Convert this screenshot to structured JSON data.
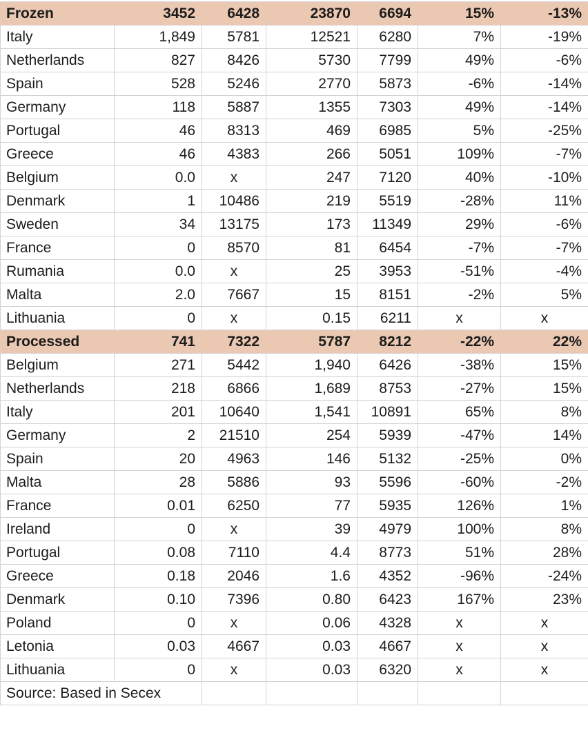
{
  "table": {
    "source_note": "Source: Based in Secex",
    "colors": {
      "section_header_bg": "#ebc8b2",
      "gridline": "#d2d2d2",
      "text": "#1c1c1c"
    },
    "sections": [
      {
        "header": {
          "label": "Frozen",
          "values": [
            "3452",
            "6428",
            "23870",
            "6694",
            "15%",
            "-13%"
          ]
        },
        "rows": [
          {
            "label": "Italy",
            "values": [
              "1,849",
              "5781",
              "12521",
              "6280",
              "7%",
              "-19%"
            ]
          },
          {
            "label": "Netherlands",
            "values": [
              "827",
              "8426",
              "5730",
              "7799",
              "49%",
              "-6%"
            ]
          },
          {
            "label": "Spain",
            "values": [
              "528",
              "5246",
              "2770",
              "5873",
              "-6%",
              "-14%"
            ]
          },
          {
            "label": "Germany",
            "values": [
              "118",
              "5887",
              "1355",
              "7303",
              "49%",
              "-14%"
            ]
          },
          {
            "label": "Portugal",
            "values": [
              "46",
              "8313",
              "469",
              "6985",
              "5%",
              "-25%"
            ]
          },
          {
            "label": "Greece",
            "values": [
              "46",
              "4383",
              "266",
              "5051",
              "109%",
              "-7%"
            ]
          },
          {
            "label": "Belgium",
            "values": [
              "0.0",
              "x",
              "247",
              "7120",
              "40%",
              "-10%"
            ]
          },
          {
            "label": "Denmark",
            "values": [
              "1",
              "10486",
              "219",
              "5519",
              "-28%",
              "11%"
            ]
          },
          {
            "label": "Sweden",
            "values": [
              "34",
              "13175",
              "173",
              "11349",
              "29%",
              "-6%"
            ]
          },
          {
            "label": "France",
            "values": [
              "0",
              "8570",
              "81",
              "6454",
              "-7%",
              "-7%"
            ]
          },
          {
            "label": "Rumania",
            "values": [
              "0.0",
              "x",
              "25",
              "3953",
              "-51%",
              "-4%"
            ]
          },
          {
            "label": "Malta",
            "values": [
              "2.0",
              "7667",
              "15",
              "8151",
              "-2%",
              "5%"
            ]
          },
          {
            "label": "Lithuania",
            "values": [
              "0",
              "x",
              "0.15",
              "6211",
              "x",
              "x"
            ]
          }
        ]
      },
      {
        "header": {
          "label": "Processed",
          "values": [
            "741",
            "7322",
            "5787",
            "8212",
            "-22%",
            "22%"
          ]
        },
        "rows": [
          {
            "label": "Belgium",
            "values": [
              "271",
              "5442",
              "1,940",
              "6426",
              "-38%",
              "15%"
            ]
          },
          {
            "label": "Netherlands",
            "values": [
              "218",
              "6866",
              "1,689",
              "8753",
              "-27%",
              "15%"
            ]
          },
          {
            "label": "Italy",
            "values": [
              "201",
              "10640",
              "1,541",
              "10891",
              "65%",
              "8%"
            ]
          },
          {
            "label": "Germany",
            "values": [
              "2",
              "21510",
              "254",
              "5939",
              "-47%",
              "14%"
            ]
          },
          {
            "label": "Spain",
            "values": [
              "20",
              "4963",
              "146",
              "5132",
              "-25%",
              "0%"
            ]
          },
          {
            "label": "Malta",
            "values": [
              "28",
              "5886",
              "93",
              "5596",
              "-60%",
              "-2%"
            ]
          },
          {
            "label": "France",
            "values": [
              "0.01",
              "6250",
              "77",
              "5935",
              "126%",
              "1%"
            ]
          },
          {
            "label": "Ireland",
            "values": [
              "0",
              "x",
              "39",
              "4979",
              "100%",
              "8%"
            ]
          },
          {
            "label": "Portugal",
            "values": [
              "0.08",
              "7110",
              "4.4",
              "8773",
              "51%",
              "28%"
            ]
          },
          {
            "label": "Greece",
            "values": [
              "0.18",
              "2046",
              "1.6",
              "4352",
              "-96%",
              "-24%"
            ]
          },
          {
            "label": "Denmark",
            "values": [
              "0.10",
              "7396",
              "0.80",
              "6423",
              "167%",
              "23%"
            ]
          },
          {
            "label": "Poland",
            "values": [
              "0",
              "x",
              "0.06",
              "4328",
              "x",
              "x"
            ]
          },
          {
            "label": "Letonia",
            "values": [
              "0.03",
              "4667",
              "0.03",
              "4667",
              "x",
              "x"
            ]
          },
          {
            "label": "Lithuania",
            "values": [
              "0",
              "x",
              "0.03",
              "6320",
              "x",
              "x"
            ]
          }
        ]
      }
    ]
  }
}
